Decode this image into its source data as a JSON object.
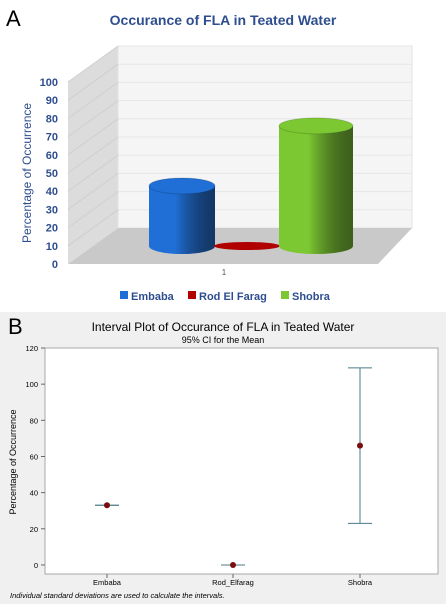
{
  "panel_a": {
    "letter": "A",
    "xtick": "1"
  },
  "panel_b": {
    "letter": "B",
    "subtitle": "95% CI for the Mean",
    "footnote": "Individual standard deviations are used to calculate the intervals."
  },
  "colors": {
    "embaba": "#1f6fd6",
    "rod_el_farag": "#b00000",
    "shobra": "#7cc832",
    "title_a": "#2e4e8f",
    "ci": "#4a7a86",
    "mean_dot": "#7a0d0d"
  },
  "chart_data": [
    {
      "type": "bar",
      "title": "Occurance of FLA in Teated Water",
      "ylabel": "Percentage of Occurrence",
      "xlabel": "",
      "ylim": [
        0,
        100
      ],
      "yticks": [
        0,
        10,
        20,
        30,
        40,
        50,
        60,
        70,
        80,
        90,
        100
      ],
      "categories": [
        "1"
      ],
      "series": [
        {
          "name": "Embaba",
          "values": [
            33
          ]
        },
        {
          "name": "Rod El Farag",
          "values": [
            0
          ]
        },
        {
          "name": "Shobra",
          "values": [
            66
          ]
        }
      ],
      "legend": "bottom",
      "grid": true,
      "style": "3d-cylinder"
    },
    {
      "type": "scatter",
      "title": "Interval Plot of Occurance of FLA in Teated Water",
      "subtitle": "95% CI for the Mean",
      "ylabel": "Percentage of Occurrence",
      "xlabel": "",
      "ylim": [
        -5,
        120
      ],
      "yticks": [
        0,
        20,
        40,
        60,
        80,
        100,
        120
      ],
      "categories": [
        "Embaba",
        "Rod_Elfarag",
        "Shobra"
      ],
      "mean": [
        33,
        0,
        66
      ],
      "ci_lower": [
        33,
        0,
        23
      ],
      "ci_upper": [
        33,
        0,
        109
      ],
      "grid": false
    }
  ]
}
